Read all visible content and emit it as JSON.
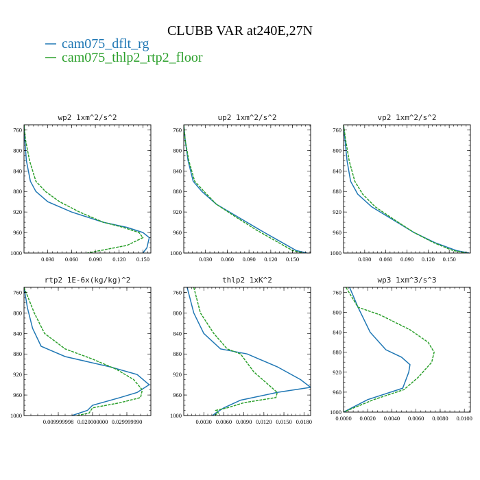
{
  "figure_title": "CLUBB VAR at240E,27N",
  "legend": [
    {
      "label": "cam075_dflt_rg",
      "color": "#1f77b4",
      "dash": "solid"
    },
    {
      "label": "cam075_thlp2_rtp2_floor",
      "color": "#2ca02c",
      "dash": "dashed"
    }
  ],
  "chart_data": [
    {
      "type": "line",
      "title": "wp2  1xm^2/s^2",
      "xlim": [
        0.0,
        0.16
      ],
      "ylim": [
        1000,
        750
      ],
      "xticks": [
        0.03,
        0.06,
        0.09,
        0.12,
        0.15
      ],
      "xtick_labels": [
        "0.030",
        "0.060",
        "0.090",
        "0.120",
        "0.150"
      ],
      "yticks": [
        760,
        800,
        840,
        880,
        920,
        960,
        1000
      ],
      "ytick_labels": [
        "760",
        "800",
        "840",
        "880",
        "920",
        "960",
        "1000"
      ],
      "series": [
        {
          "name": "cam075_dflt_rg",
          "x": [
            0.0,
            0.001,
            0.003,
            0.008,
            0.015,
            0.03,
            0.06,
            0.1,
            0.13,
            0.15,
            0.158,
            0.155,
            0.15
          ],
          "y": [
            750,
            780,
            820,
            860,
            880,
            900,
            920,
            940,
            950,
            960,
            970,
            990,
            1000
          ]
        },
        {
          "name": "cam075_thlp2_rtp2_floor",
          "x": [
            0.0,
            0.002,
            0.007,
            0.015,
            0.027,
            0.045,
            0.07,
            0.1,
            0.125,
            0.145,
            0.15,
            0.13,
            0.08
          ],
          "y": [
            750,
            780,
            820,
            860,
            880,
            900,
            920,
            940,
            950,
            960,
            970,
            985,
            1000
          ]
        }
      ]
    },
    {
      "type": "line",
      "title": "up2  1xm^2/s^2",
      "xlim": [
        0.0,
        0.175
      ],
      "ylim": [
        1000,
        750
      ],
      "xticks": [
        0.03,
        0.06,
        0.09,
        0.12,
        0.15
      ],
      "xtick_labels": [
        "0.030",
        "0.060",
        "0.090",
        "0.120",
        "0.150"
      ],
      "yticks": [
        760,
        800,
        840,
        880,
        920,
        960,
        1000
      ],
      "ytick_labels": [
        "760",
        "800",
        "840",
        "880",
        "920",
        "960",
        "1000"
      ],
      "series": [
        {
          "name": "cam075_dflt_rg",
          "x": [
            0.0,
            0.002,
            0.006,
            0.013,
            0.025,
            0.045,
            0.075,
            0.105,
            0.13,
            0.155,
            0.17
          ],
          "y": [
            750,
            780,
            820,
            860,
            880,
            905,
            930,
            955,
            975,
            995,
            1000
          ]
        },
        {
          "name": "cam075_thlp2_rtp2_floor",
          "x": [
            0.0,
            0.002,
            0.007,
            0.015,
            0.028,
            0.045,
            0.072,
            0.1,
            0.125,
            0.15,
            0.165
          ],
          "y": [
            750,
            780,
            820,
            860,
            880,
            905,
            930,
            955,
            975,
            995,
            1000
          ]
        }
      ]
    },
    {
      "type": "line",
      "title": "vp2  1xm^2/s^2",
      "xlim": [
        0.0,
        0.18
      ],
      "ylim": [
        1000,
        750
      ],
      "xticks": [
        0.03,
        0.06,
        0.09,
        0.12,
        0.15
      ],
      "xtick_labels": [
        "0.030",
        "0.060",
        "0.090",
        "0.120",
        "0.150"
      ],
      "yticks": [
        760,
        800,
        840,
        880,
        920,
        960,
        1000
      ],
      "ytick_labels": [
        "760",
        "800",
        "840",
        "880",
        "920",
        "960",
        "1000"
      ],
      "series": [
        {
          "name": "cam075_dflt_rg",
          "x": [
            0.0,
            0.002,
            0.005,
            0.01,
            0.02,
            0.04,
            0.07,
            0.1,
            0.13,
            0.16,
            0.178
          ],
          "y": [
            750,
            780,
            820,
            860,
            885,
            910,
            935,
            960,
            980,
            995,
            1000
          ]
        },
        {
          "name": "cam075_thlp2_rtp2_floor",
          "x": [
            0.0,
            0.003,
            0.008,
            0.016,
            0.027,
            0.045,
            0.072,
            0.1,
            0.128,
            0.155,
            0.175
          ],
          "y": [
            750,
            780,
            820,
            860,
            885,
            910,
            935,
            960,
            980,
            995,
            1000
          ]
        }
      ]
    },
    {
      "type": "line",
      "title": "rtp2  1E-6x(kg/kg)^2",
      "xlim": [
        0.0,
        0.037
      ],
      "ylim": [
        1000,
        750
      ],
      "xticks": [
        0.01,
        0.02,
        0.03
      ],
      "xtick_labels": [
        "0.009999998",
        "0.020000000",
        "0.029999990"
      ],
      "yticks": [
        760,
        800,
        840,
        880,
        920,
        960,
        1000
      ],
      "ytick_labels": [
        "760",
        "800",
        "840",
        "880",
        "920",
        "960",
        "1000"
      ],
      "series": [
        {
          "name": "cam075_dflt_rg",
          "x": [
            0.0,
            0.001,
            0.0025,
            0.005,
            0.012,
            0.025,
            0.033,
            0.0365,
            0.033,
            0.028,
            0.02,
            0.0185,
            0.014
          ],
          "y": [
            750,
            790,
            830,
            865,
            885,
            905,
            920,
            940,
            955,
            965,
            980,
            990,
            1000
          ]
        },
        {
          "name": "cam075_thlp2_rtp2_floor",
          "x": [
            0.0,
            0.003,
            0.006,
            0.012,
            0.02,
            0.027,
            0.032,
            0.0345,
            0.034,
            0.028,
            0.02,
            0.019,
            0.0155
          ],
          "y": [
            750,
            800,
            840,
            870,
            890,
            910,
            930,
            950,
            965,
            975,
            985,
            995,
            1000
          ]
        }
      ]
    },
    {
      "type": "line",
      "title": "thlp2  1xK^2",
      "xlim": [
        0.0,
        0.019
      ],
      "ylim": [
        1000,
        750
      ],
      "xticks": [
        0.003,
        0.006,
        0.009,
        0.012,
        0.015,
        0.018
      ],
      "xtick_labels": [
        "0.0030",
        "0.0060",
        "0.0090",
        "0.0120",
        "0.0150",
        "0.0180"
      ],
      "yticks": [
        760,
        800,
        840,
        880,
        920,
        960,
        1000
      ],
      "ytick_labels": [
        "760",
        "800",
        "840",
        "880",
        "920",
        "960",
        "1000"
      ],
      "series": [
        {
          "name": "cam075_dflt_rg",
          "x": [
            0.0005,
            0.0015,
            0.003,
            0.0055,
            0.0095,
            0.014,
            0.0175,
            0.019,
            0.014,
            0.0085,
            0.006,
            0.0048,
            0.0043
          ],
          "y": [
            750,
            800,
            840,
            870,
            880,
            905,
            930,
            945,
            955,
            970,
            985,
            995,
            1000
          ]
        },
        {
          "name": "cam075_thlp2_rtp2_floor",
          "x": [
            0.0015,
            0.0025,
            0.0045,
            0.0065,
            0.0085,
            0.0105,
            0.014,
            0.0138,
            0.009,
            0.0065,
            0.0048,
            0.0052,
            0.0045
          ],
          "y": [
            750,
            800,
            840,
            870,
            880,
            915,
            955,
            965,
            975,
            985,
            990,
            995,
            1000
          ]
        }
      ]
    },
    {
      "type": "line",
      "title": "wp3  1xm^3/s^3",
      "xlim": [
        0.0,
        0.0105
      ],
      "ylim": [
        1000,
        750
      ],
      "xticks": [
        0.0,
        0.002,
        0.004,
        0.006,
        0.008,
        0.01
      ],
      "xtick_labels": [
        "0.0000",
        "0.0020",
        "0.0040",
        "0.0060",
        "0.0080",
        "0.0100"
      ],
      "yticks": [
        760,
        800,
        840,
        880,
        920,
        960,
        1000
      ],
      "ytick_labels": [
        "760",
        "800",
        "840",
        "880",
        "920",
        "960",
        "1000"
      ],
      "series": [
        {
          "name": "cam075_dflt_rg",
          "x": [
            0.0005,
            0.0012,
            0.0022,
            0.0035,
            0.0048,
            0.0055,
            0.0054,
            0.0049,
            0.002,
            0.0008,
            0.0
          ],
          "y": [
            750,
            790,
            840,
            875,
            890,
            905,
            920,
            952,
            975,
            990,
            1000
          ]
        },
        {
          "name": "cam075_thlp2_rtp2_floor",
          "x": [
            0.0002,
            0.0012,
            0.003,
            0.0055,
            0.007,
            0.0075,
            0.0073,
            0.0062,
            0.005,
            0.0025,
            0.0
          ],
          "y": [
            750,
            790,
            805,
            835,
            860,
            880,
            900,
            930,
            955,
            975,
            1000
          ]
        }
      ]
    }
  ]
}
